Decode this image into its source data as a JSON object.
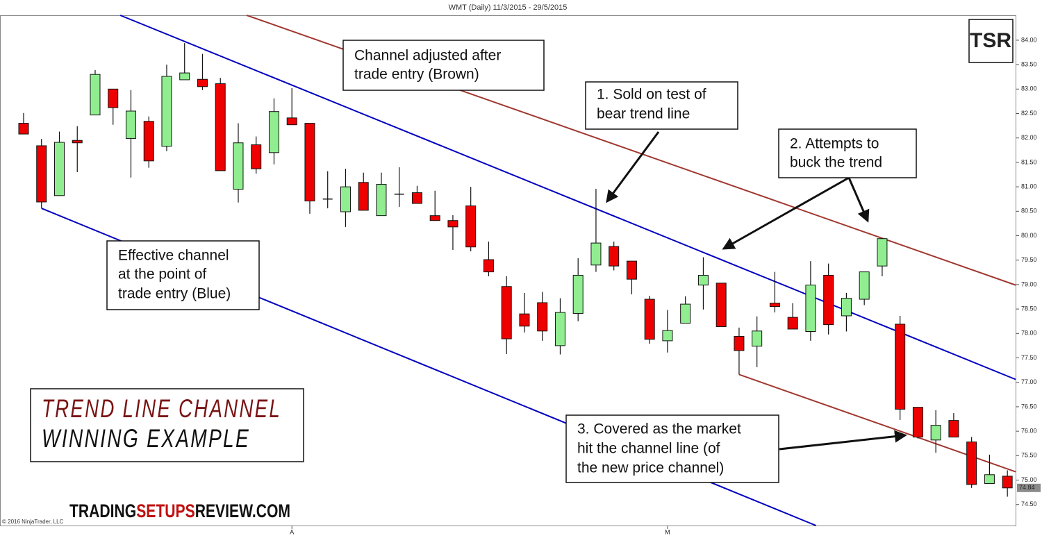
{
  "chart_data": {
    "type": "candlestick",
    "title": "WMT (Daily)  11/3/2015 - 29/5/2015",
    "xlim": [
      -1.32,
      55.46
    ],
    "xticks": [
      {
        "value": 15,
        "label": "A"
      },
      {
        "value": 36,
        "label": "M"
      }
    ],
    "ylim": [
      74.07,
      84.51
    ],
    "yticks": [
      {
        "value": 74.5,
        "label": "74.50"
      },
      {
        "value": 75,
        "label": "75.00"
      },
      {
        "value": 75.5,
        "label": "75.50"
      },
      {
        "value": 76,
        "label": "76.00"
      },
      {
        "value": 76.5,
        "label": "76.50"
      },
      {
        "value": 77,
        "label": "77.00"
      },
      {
        "value": 77.5,
        "label": "77.50"
      },
      {
        "value": 78,
        "label": "78.00"
      },
      {
        "value": 78.5,
        "label": "78.50"
      },
      {
        "value": 79,
        "label": "79.00"
      },
      {
        "value": 79.5,
        "label": "79.50"
      },
      {
        "value": 80,
        "label": "80.00"
      },
      {
        "value": 80.5,
        "label": "80.50"
      },
      {
        "value": 81,
        "label": "81.00"
      },
      {
        "value": 81.5,
        "label": "81.50"
      },
      {
        "value": 82,
        "label": "82.00"
      },
      {
        "value": 82.5,
        "label": "82.50"
      },
      {
        "value": 83,
        "label": "83.00"
      },
      {
        "value": 83.5,
        "label": "83.50"
      },
      {
        "value": 84,
        "label": "84.00"
      }
    ],
    "up_color": "#90ee90",
    "down_color": "#ee0000",
    "open": [
      82.3,
      81.84,
      80.82,
      81.95,
      82.47,
      83.0,
      81.99,
      82.34,
      81.83,
      83.19,
      83.2,
      83.11,
      80.95,
      81.86,
      81.7,
      82.41,
      82.3,
      80.75,
      80.49,
      81.09,
      80.41,
      80.85,
      80.88,
      80.41,
      80.31,
      80.61,
      79.51,
      78.96,
      78.4,
      78.63,
      77.75,
      78.41,
      79.4,
      79.78,
      79.48,
      78.7,
      77.85,
      78.21,
      78.99,
      79.03,
      77.94,
      77.74,
      78.62,
      78.33,
      78.04,
      79.19,
      78.36,
      78.7,
      79.38,
      78.19,
      76.49,
      75.82,
      76.22,
      75.78,
      74.93,
      75.08
    ],
    "high": [
      82.51,
      81.98,
      82.13,
      82.24,
      83.39,
      83.0,
      82.98,
      82.44,
      83.5,
      83.94,
      83.72,
      83.23,
      82.3,
      82.03,
      82.81,
      83.02,
      82.3,
      81.32,
      81.37,
      81.29,
      81.29,
      81.4,
      81.02,
      80.92,
      80.42,
      81.0,
      79.88,
      79.17,
      78.83,
      78.85,
      78.72,
      79.54,
      80.96,
      79.88,
      79.48,
      78.77,
      78.48,
      78.76,
      79.56,
      79.03,
      78.12,
      78.35,
      79.26,
      78.62,
      79.48,
      79.43,
      78.83,
      79.26,
      79.94,
      78.36,
      76.49,
      76.43,
      76.37,
      75.88,
      75.52,
      75.2
    ],
    "low": [
      82.08,
      80.56,
      80.82,
      81.3,
      82.47,
      82.27,
      81.19,
      81.39,
      81.73,
      83.19,
      82.98,
      81.33,
      80.68,
      81.27,
      81.46,
      82.27,
      80.45,
      80.56,
      80.18,
      80.52,
      80.41,
      80.59,
      80.66,
      80.31,
      79.71,
      79.68,
      79.17,
      77.58,
      78.02,
      77.85,
      77.57,
      78.25,
      79.26,
      79.29,
      78.8,
      77.79,
      77.61,
      78.21,
      78.49,
      78.14,
      77.16,
      77.31,
      78.43,
      78.09,
      77.85,
      77.98,
      78.04,
      78.58,
      79.17,
      76.23,
      75.85,
      75.56,
      75.88,
      74.84,
      74.93,
      74.66
    ],
    "close": [
      82.08,
      80.69,
      81.91,
      81.9,
      83.3,
      82.62,
      82.55,
      81.53,
      83.26,
      83.33,
      83.05,
      81.33,
      81.9,
      81.37,
      82.54,
      82.27,
      80.71,
      80.75,
      81.0,
      80.52,
      81.05,
      80.85,
      80.66,
      80.31,
      80.18,
      79.77,
      79.26,
      77.89,
      78.15,
      78.05,
      78.43,
      79.19,
      79.85,
      79.38,
      79.11,
      77.88,
      78.06,
      78.6,
      79.19,
      78.14,
      77.65,
      78.05,
      78.55,
      78.09,
      78.99,
      78.18,
      78.72,
      79.26,
      79.94,
      76.45,
      75.88,
      76.12,
      75.88,
      74.91,
      75.11,
      74.84
    ],
    "last_price": 74.84,
    "trend_lines": [
      {
        "color": "#0000c0",
        "x": [
          5.4,
          55.46
        ],
        "y": [
          84.51,
          77.06
        ]
      },
      {
        "color": "#0000c0",
        "x": [
          1,
          44.3
        ],
        "y": [
          80.56,
          74.07
        ]
      },
      {
        "color": "#a03830",
        "x": [
          12.47,
          55.46
        ],
        "y": [
          84.51,
          78.99
        ]
      },
      {
        "color": "#a03830",
        "x": [
          40,
          55.46
        ],
        "y": [
          77.16,
          75.17
        ]
      }
    ],
    "annotations": [
      [
        "Channel adjusted after",
        "trade entry (Brown)"
      ],
      [
        "1. Sold on test of",
        "bear trend line"
      ],
      [
        "2. Attempts to",
        "buck the trend"
      ],
      [
        "Effective channel",
        "at the point of",
        "trade entry (Blue)"
      ],
      [
        "3. Covered as the market",
        "hit the channel line (of",
        "the new price channel)"
      ]
    ],
    "logo": "TSR",
    "heading": [
      "TREND LINE CHANNEL",
      "WINNING EXAMPLE"
    ],
    "watermark": [
      "TRADING",
      "SETUPS",
      "REVIEW.COM"
    ],
    "copyright": "© 2016 NinjaTrader, LLC"
  }
}
